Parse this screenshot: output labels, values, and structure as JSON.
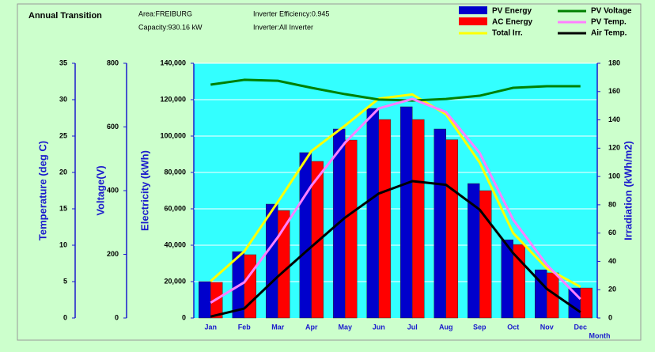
{
  "chart_data": {
    "type": "bar-line",
    "title": "Annual Transition",
    "info": [
      "Area:FREIBURG",
      "Capacity:930.16 kW",
      "Inverter Efficiency:0.945",
      "Inverter:All Inverter"
    ],
    "x_label": "Month",
    "categories": [
      "Jan",
      "Feb",
      "Mar",
      "Apr",
      "May",
      "Jun",
      "Jul",
      "Aug",
      "Sep",
      "Oct",
      "Nov",
      "Dec"
    ],
    "axes": [
      {
        "label": "Temperature (deg C)",
        "lim": [
          0,
          35
        ],
        "ticks": [
          0,
          5,
          10,
          15,
          20,
          25,
          30,
          35
        ],
        "side": "left"
      },
      {
        "label": "Voltage(V)",
        "lim": [
          0,
          800
        ],
        "ticks": [
          0,
          200,
          400,
          600,
          800
        ],
        "side": "left"
      },
      {
        "label": "Electricity (kWh)",
        "lim": [
          0,
          140000
        ],
        "ticks": [
          0,
          {
            "value": 20000,
            "label": "20,000"
          },
          {
            "value": 40000,
            "label": "40,000"
          },
          {
            "value": 60000,
            "label": "60,000"
          },
          {
            "value": 80000,
            "label": "80,000"
          },
          {
            "value": 100000,
            "label": "100,000"
          },
          {
            "value": 120000,
            "label": "120,000"
          },
          {
            "value": 140000,
            "label": "140,000"
          }
        ],
        "side": "left"
      },
      {
        "label": "Irradiation (kWh/m2)",
        "lim": [
          0,
          180
        ],
        "ticks": [
          0,
          20,
          40,
          60,
          80,
          100,
          120,
          140,
          160,
          180
        ],
        "side": "right"
      }
    ],
    "grid": true,
    "series": [
      {
        "name": "PV Energy",
        "kind": "bar",
        "axis": 2,
        "color": "#0000cc",
        "values": [
          20000,
          36500,
          62600,
          90900,
          103900,
          115200,
          116100,
          103900,
          73900,
          43000,
          26500,
          16500
        ]
      },
      {
        "name": "AC Energy",
        "kind": "bar",
        "axis": 2,
        "color": "#ff0000",
        "values": [
          19600,
          34800,
          59100,
          86100,
          97800,
          109100,
          109100,
          98000,
          70000,
          40400,
          24800,
          16500
        ]
      },
      {
        "name": "Total Irr.",
        "kind": "line",
        "axis": 3,
        "color": "#ffff00",
        "values": [
          26,
          47,
          82,
          118,
          136,
          155,
          158,
          144,
          110,
          60,
          35,
          22
        ]
      },
      {
        "name": "PV Voltage",
        "kind": "line",
        "axis": 1,
        "color": "#008000",
        "values": [
          733,
          748,
          745,
          723,
          703,
          686,
          683,
          688,
          698,
          723,
          728,
          728
        ]
      },
      {
        "name": "PV Temp.",
        "kind": "line",
        "axis": 0,
        "color": "#ff80ff",
        "values": [
          2.1,
          4.9,
          11.1,
          18.2,
          24.1,
          28.8,
          30.1,
          28.3,
          22.7,
          13.5,
          7.3,
          2.6
        ]
      },
      {
        "name": "Air Temp.",
        "kind": "line",
        "axis": 0,
        "color": "#000000",
        "values": [
          0.2,
          1.3,
          5.7,
          9.8,
          13.8,
          17.1,
          18.8,
          18.3,
          14.9,
          8.9,
          4.0,
          0.8
        ]
      }
    ]
  }
}
